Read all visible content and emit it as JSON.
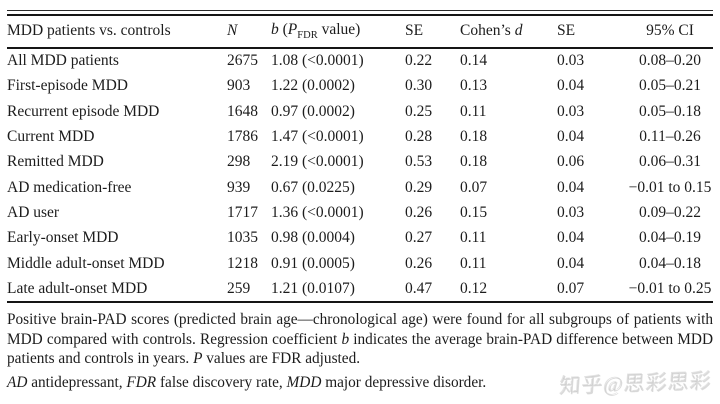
{
  "table": {
    "header": [
      [
        {
          "t": "MDD patients vs. controls"
        }
      ],
      [
        {
          "t": "N",
          "s": "i"
        }
      ],
      [
        {
          "t": "b",
          "s": "i"
        },
        {
          "t": " ("
        },
        {
          "t": "P",
          "s": "i"
        },
        {
          "t": "FDR",
          "s": "sub"
        },
        {
          "t": " value)"
        }
      ],
      [
        {
          "t": "SE"
        }
      ],
      [
        {
          "t": "Cohen’s "
        },
        {
          "t": "d",
          "s": "i"
        }
      ],
      [
        {
          "t": "SE"
        }
      ],
      [
        {
          "t": "95% CI"
        }
      ]
    ],
    "rows": [
      [
        "All MDD patients",
        "2675",
        "1.08 (<0.0001)",
        "0.22",
        "0.14",
        "0.03",
        "0.08–0.20"
      ],
      [
        "First-episode MDD",
        "903",
        "1.22 (0.0002)",
        "0.30",
        "0.13",
        "0.04",
        "0.05–0.21"
      ],
      [
        "Recurrent episode MDD",
        "1648",
        "0.97 (0.0002)",
        "0.25",
        "0.11",
        "0.03",
        "0.05–0.18"
      ],
      [
        "Current MDD",
        "1786",
        "1.47 (<0.0001)",
        "0.28",
        "0.18",
        "0.04",
        "0.11–0.26"
      ],
      [
        "Remitted MDD",
        "298",
        "2.19 (<0.0001)",
        "0.53",
        "0.18",
        "0.06",
        "0.06–0.31"
      ],
      [
        "AD medication-free",
        "939",
        "0.67 (0.0225)",
        "0.29",
        "0.07",
        "0.04",
        "−0.01 to 0.15"
      ],
      [
        "AD user",
        "1717",
        "1.36 (<0.0001)",
        "0.26",
        "0.15",
        "0.03",
        "0.09–0.22"
      ],
      [
        "Early-onset MDD",
        "1035",
        "0.98 (0.0004)",
        "0.27",
        "0.11",
        "0.04",
        "0.04–0.19"
      ],
      [
        "Middle adult-onset MDD",
        "1218",
        "0.91 (0.0005)",
        "0.26",
        "0.11",
        "0.04",
        "0.04–0.18"
      ],
      [
        "Late adult-onset MDD",
        "259",
        "1.21 (0.0107)",
        "0.47",
        "0.12",
        "0.07",
        "−0.01 to 0.25"
      ]
    ]
  },
  "footnotes": {
    "para": [
      {
        "t": "Positive brain-PAD scores (predicted brain age—chronological age) were found for all subgroups of patients with MDD compared with controls. Regression coefficient "
      },
      {
        "t": "b",
        "s": "i"
      },
      {
        "t": " indicates the average brain-PAD difference between MDD patients and controls in years. "
      },
      {
        "t": "P",
        "s": "i"
      },
      {
        "t": " values are FDR adjusted."
      }
    ],
    "abbrev": [
      {
        "t": "AD",
        "s": "i"
      },
      {
        "t": " antidepressant, "
      },
      {
        "t": "FDR",
        "s": "i"
      },
      {
        "t": " false discovery rate, "
      },
      {
        "t": "MDD",
        "s": "i"
      },
      {
        "t": " major depressive disorder."
      }
    ]
  },
  "watermark": {
    "text": "知乎@思彩思彩"
  }
}
